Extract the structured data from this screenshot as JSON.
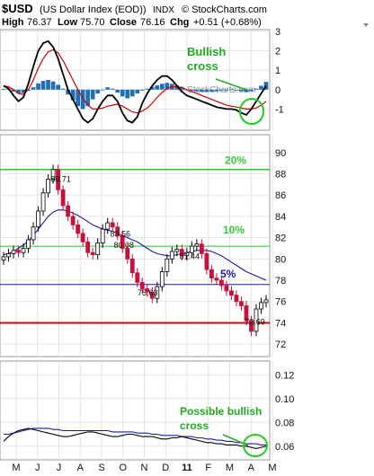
{
  "header": {
    "symbol": "$USD",
    "name": "(US Dollar Index (EOD))",
    "exchange": "INDX",
    "credit": "© StockCharts.com",
    "high_label": "High",
    "high": "76.37",
    "low_label": "Low",
    "low": "75.70",
    "close_label": "Close",
    "close": "76.16",
    "chg_label": "Chg",
    "chg": "+0.51 (+0.68%)"
  },
  "colors": {
    "up": "#000000",
    "down": "#c8103a",
    "hist": "#1f6fb5",
    "ma_red": "#d40000",
    "ma_blue": "#1a1aa0",
    "green": "#22cc22",
    "hline_red": "#d40000",
    "hline_blue": "#1a1aa0",
    "grid": "#dddddd"
  },
  "annotations": {
    "macd_note": "Bullish\ncross",
    "bottom_note": "Possible bullish\ncross",
    "watermark": "© StockCharts.com"
  },
  "chart_data": [
    {
      "type": "bar",
      "panel": "MACD histogram with MACD and signal lines",
      "yticks": [
        "3",
        "2",
        "1",
        "0",
        "-1"
      ],
      "ylim": [
        -2,
        3
      ],
      "histogram": [
        0.04,
        0.02,
        -0.1,
        -0.2,
        -0.18,
        -0.05,
        0.12,
        0.32,
        0.45,
        0.5,
        0.42,
        0.25,
        0.05,
        -0.25,
        -0.55,
        -0.85,
        -1.0,
        -0.85,
        -0.5,
        -0.2,
        0.0,
        0.12,
        0.05,
        -0.15,
        -0.35,
        -0.45,
        -0.35,
        -0.2,
        -0.05,
        0.05,
        0.15,
        0.22,
        0.3,
        0.35,
        0.3,
        0.22,
        0.12,
        0.0,
        -0.05,
        -0.08,
        -0.1,
        -0.12,
        -0.1,
        -0.08,
        -0.05,
        -0.02,
        0.02,
        -0.02,
        -0.08,
        -0.12,
        -0.08,
        0.05,
        0.2,
        0.4
      ],
      "macd": [
        0.2,
        0.05,
        -0.3,
        -0.6,
        -0.4,
        0.3,
        1.2,
        2.0,
        2.4,
        2.5,
        2.2,
        1.6,
        0.8,
        0.0,
        -0.5,
        -1.0,
        -1.5,
        -1.7,
        -1.5,
        -1.0,
        -0.6,
        -0.3,
        -0.3,
        -0.6,
        -1.2,
        -1.6,
        -1.7,
        -1.4,
        -0.7,
        -0.2,
        0.2,
        0.5,
        0.7,
        0.7,
        0.5,
        0.2,
        -0.1,
        -0.3,
        -0.4,
        -0.5,
        -0.6,
        -0.7,
        -0.8,
        -0.9,
        -0.95,
        -1.0,
        -1.0,
        -1.05,
        -1.2,
        -1.3,
        -1.0,
        -0.6,
        -0.2,
        0.2
      ],
      "signal": [
        0.2,
        0.15,
        0.0,
        -0.2,
        -0.25,
        0.0,
        0.5,
        1.1,
        1.6,
        1.95,
        2.05,
        1.9,
        1.5,
        1.0,
        0.5,
        0.0,
        -0.45,
        -0.8,
        -1.0,
        -1.0,
        -0.95,
        -0.85,
        -0.8,
        -0.75,
        -0.85,
        -1.0,
        -1.15,
        -1.2,
        -1.1,
        -0.95,
        -0.7,
        -0.4,
        -0.15,
        0.05,
        0.15,
        0.15,
        0.1,
        0.0,
        -0.1,
        -0.2,
        -0.3,
        -0.4,
        -0.5,
        -0.6,
        -0.7,
        -0.8,
        -0.85,
        -0.9,
        -0.95,
        -1.0,
        -1.0,
        -0.95,
        -0.8,
        -0.6
      ]
    },
    {
      "type": "bar",
      "panel": "Price OHLC (weekly) with moving average",
      "yticks": [
        "90",
        "88",
        "86",
        "84",
        "82",
        "80",
        "78",
        "76",
        "74",
        "72"
      ],
      "ylim": [
        71,
        91.5
      ],
      "close": [
        80.2,
        80.5,
        80.8,
        80.6,
        81.0,
        81.8,
        83.0,
        84.5,
        86.2,
        87.5,
        88.4,
        86.5,
        85.0,
        84.0,
        83.2,
        82.4,
        81.6,
        80.6,
        80.4,
        81.5,
        82.8,
        83.4,
        83.0,
        82.2,
        81.0,
        80.0,
        78.7,
        77.8,
        77.2,
        76.9,
        76.3,
        77.4,
        78.8,
        80.0,
        80.7,
        80.9,
        80.3,
        80.6,
        81.2,
        81.4,
        80.5,
        79.0,
        78.2,
        78.0,
        77.5,
        77.0,
        76.6,
        76.0,
        75.6,
        74.2,
        73.2,
        75.3,
        75.9,
        76.16
      ],
      "ma": [
        80.4,
        80.5,
        80.7,
        81.0,
        81.3,
        81.7,
        82.2,
        82.8,
        83.4,
        84.0,
        84.4,
        84.6,
        84.6,
        84.5,
        84.3,
        84.1,
        83.8,
        83.5,
        83.2,
        83.0,
        82.8,
        82.7,
        82.6,
        82.4,
        82.2,
        82.0,
        81.8,
        81.6,
        81.3,
        81.0,
        80.7,
        80.5,
        80.4,
        80.3,
        80.3,
        80.4,
        80.5,
        80.6,
        80.7,
        80.8,
        80.8,
        80.8,
        80.7,
        80.5,
        80.3,
        80.0,
        79.7,
        79.4,
        79.1,
        78.8,
        78.6,
        78.4,
        78.2,
        78.0
      ],
      "labels": [
        "88.71",
        "83.56",
        "80.08",
        "81.44",
        "75.63",
        "72.69"
      ],
      "retracements": [
        {
          "label": "20%",
          "value": 88.4
        },
        {
          "label": "10%",
          "value": 81.2
        },
        {
          "label": "5%",
          "value": 77.6
        }
      ],
      "support_line": 74.0
    },
    {
      "type": "line",
      "panel": "lower indicator with two lines",
      "yticks": [
        "0.12",
        "0.10",
        "0.08",
        "0.06"
      ],
      "ylim": [
        0.05,
        0.13
      ],
      "black": [
        0.064,
        0.068,
        0.071,
        0.073,
        0.074,
        0.075,
        0.074,
        0.073,
        0.072,
        0.071,
        0.07,
        0.069,
        0.068,
        0.068,
        0.069,
        0.07,
        0.071,
        0.072,
        0.072,
        0.071,
        0.07,
        0.069,
        0.068,
        0.068,
        0.069,
        0.07,
        0.07,
        0.069,
        0.068,
        0.068,
        0.068,
        0.067,
        0.066,
        0.066,
        0.067,
        0.067,
        0.068,
        0.067,
        0.066,
        0.065,
        0.064,
        0.063,
        0.063,
        0.062,
        0.062,
        0.061,
        0.061,
        0.061,
        0.06,
        0.06,
        0.059,
        0.058,
        0.059,
        0.06
      ],
      "blue": [
        0.07,
        0.07,
        0.071,
        0.072,
        0.073,
        0.074,
        0.075,
        0.075,
        0.075,
        0.075,
        0.074,
        0.074,
        0.073,
        0.073,
        0.073,
        0.073,
        0.073,
        0.073,
        0.073,
        0.073,
        0.073,
        0.073,
        0.072,
        0.072,
        0.072,
        0.072,
        0.072,
        0.071,
        0.071,
        0.071,
        0.07,
        0.07,
        0.069,
        0.069,
        0.069,
        0.069,
        0.068,
        0.068,
        0.068,
        0.067,
        0.067,
        0.066,
        0.066,
        0.065,
        0.065,
        0.064,
        0.064,
        0.063,
        0.063,
        0.062,
        0.062,
        0.062,
        0.061,
        0.061
      ]
    },
    {
      "type": "axis",
      "x_months": [
        "M",
        "J",
        "J",
        "A",
        "S",
        "O",
        "N",
        "D",
        "11",
        "F",
        "M",
        "A",
        "M"
      ]
    }
  ]
}
